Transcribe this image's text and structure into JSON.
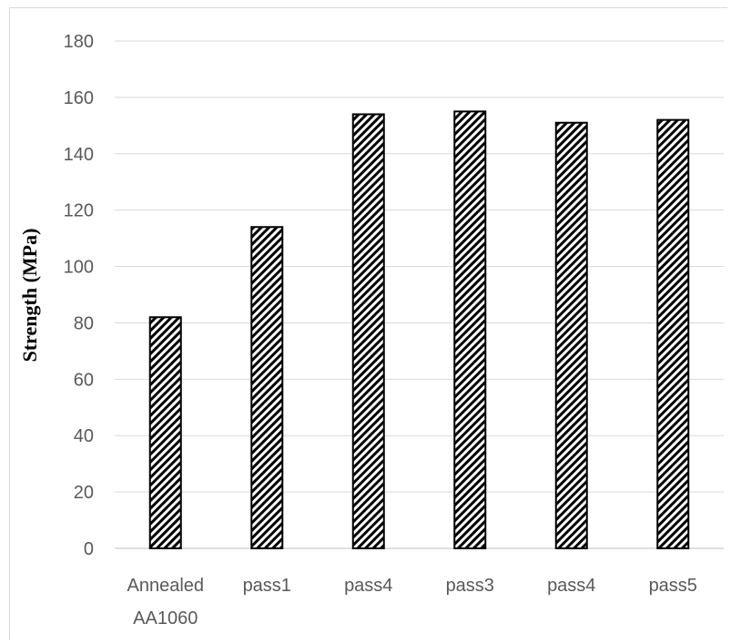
{
  "chart_data": {
    "type": "bar",
    "title": "",
    "xlabel": "",
    "ylabel": "Strength (MPa)",
    "categories": [
      [
        "Annealed",
        "AA1060"
      ],
      [
        "pass1"
      ],
      [
        "pass4"
      ],
      [
        "pass3"
      ],
      [
        "pass4"
      ],
      [
        "pass5"
      ]
    ],
    "values": [
      82,
      114,
      154,
      155,
      151,
      152
    ],
    "ylim": [
      0,
      180
    ],
    "yticks": [
      "0",
      "20",
      "40",
      "60",
      "80",
      "100",
      "120",
      "140",
      "160",
      "180"
    ],
    "grid": true,
    "legend": "none",
    "bar_fill": "diagonal hatch",
    "colors": {
      "bar_stroke": "#000000",
      "grid": "#d9d9d9",
      "tick_text": "#595959",
      "background": "#ffffff"
    }
  }
}
